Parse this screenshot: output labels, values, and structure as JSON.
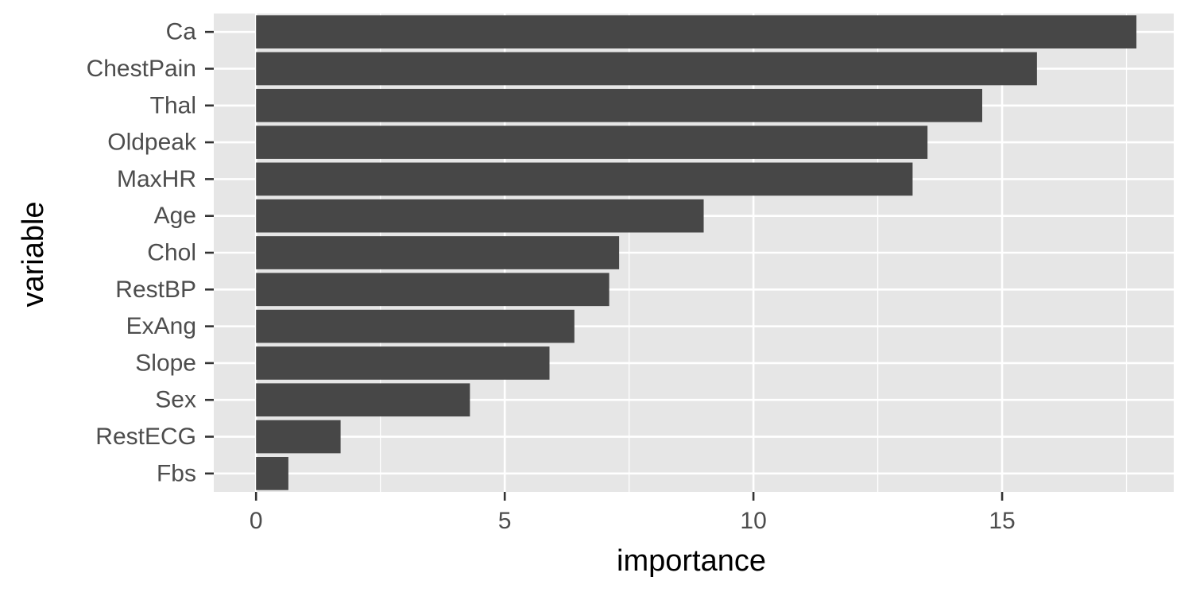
{
  "chart_data": {
    "type": "bar",
    "orientation": "horizontal",
    "xlabel": "importance",
    "ylabel": "variable",
    "categories": [
      "Ca",
      "ChestPain",
      "Thal",
      "Oldpeak",
      "MaxHR",
      "Age",
      "Chol",
      "RestBP",
      "ExAng",
      "Slope",
      "Sex",
      "RestECG",
      "Fbs"
    ],
    "values": [
      17.7,
      15.7,
      14.6,
      13.5,
      13.2,
      9.0,
      7.3,
      7.1,
      6.4,
      5.9,
      4.3,
      1.7,
      0.65
    ],
    "xlim": [
      -0.85,
      18.45
    ],
    "xticks": [
      0,
      5,
      10,
      15
    ],
    "xtick_labels": [
      "0",
      "5",
      "10",
      "15"
    ],
    "grid": true,
    "colors": {
      "bar": "#474747",
      "panel": "#e6e6e6",
      "grid": "#ffffff",
      "tick": "#333333"
    }
  }
}
